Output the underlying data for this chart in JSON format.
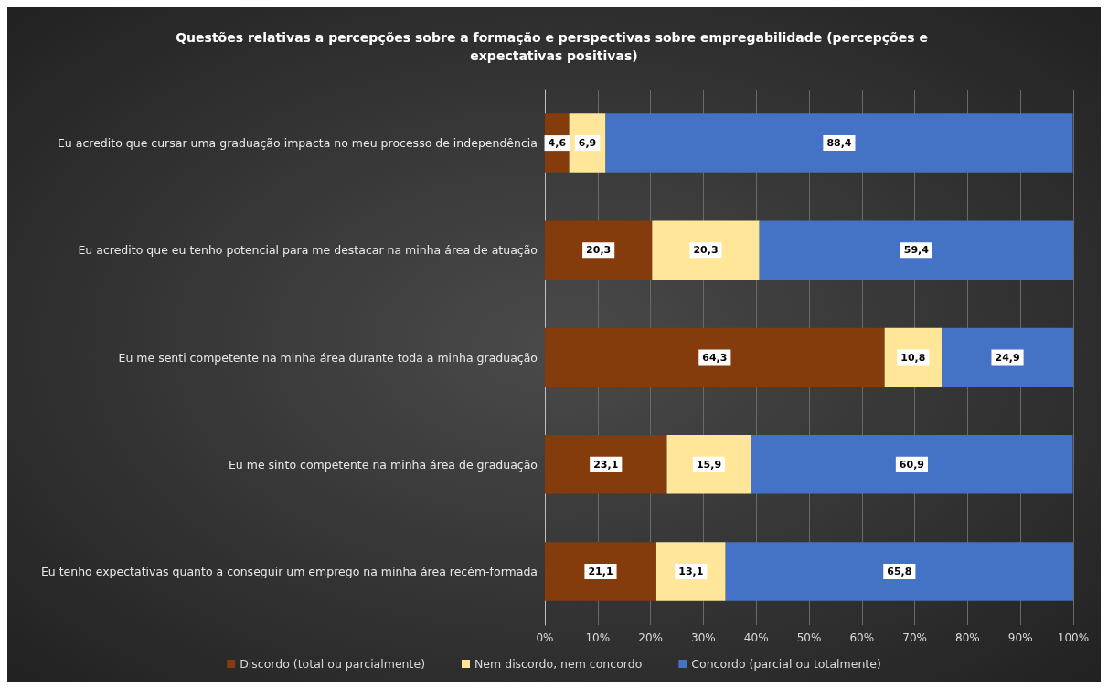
{
  "chart_data": {
    "type": "bar",
    "orientation": "horizontal",
    "stacked": true,
    "title": "Questões relativas a percepções sobre a formação e perspectivas sobre empregabilidade (percepções e expectativas positivas)",
    "categories": [
      "Eu acredito que cursar uma graduação impacta no meu processo de independência",
      "Eu acredito que eu tenho potencial para me destacar na minha área de atuação",
      "Eu me senti competente na minha área durante toda a minha graduação",
      "Eu me sinto competente na minha área de graduação",
      "Eu tenho expectativas quanto a conseguir um emprego na minha área recém-formada"
    ],
    "series": [
      {
        "name": "Discordo (total ou parcialmente)",
        "color": "#843c0c",
        "values": [
          4.6,
          20.3,
          64.3,
          23.1,
          21.1
        ],
        "value_labels": [
          "4,6",
          "20,3",
          "64,3",
          "23,1",
          "21,1"
        ]
      },
      {
        "name": "Nem discordo, nem concordo",
        "color": "#ffe699",
        "values": [
          6.9,
          20.3,
          10.8,
          15.9,
          13.1
        ],
        "value_labels": [
          "6,9",
          "20,3",
          "10,8",
          "15,9",
          "13,1"
        ]
      },
      {
        "name": "Concordo (parcial ou totalmente)",
        "color": "#4472c4",
        "values": [
          88.4,
          59.4,
          24.9,
          60.9,
          65.8
        ],
        "value_labels": [
          "88,4",
          "59,4",
          "24,9",
          "60,9",
          "65,8"
        ]
      }
    ],
    "xlim": [
      0,
      100
    ],
    "xticks": [
      {
        "value": 0,
        "label": "0%"
      },
      {
        "value": 10,
        "label": "10%"
      },
      {
        "value": 20,
        "label": "20%"
      },
      {
        "value": 30,
        "label": "30%"
      },
      {
        "value": 40,
        "label": "40%"
      },
      {
        "value": 50,
        "label": "50%"
      },
      {
        "value": 60,
        "label": "60%"
      },
      {
        "value": 70,
        "label": "70%"
      },
      {
        "value": 80,
        "label": "80%"
      },
      {
        "value": 90,
        "label": "90%"
      },
      {
        "value": 100,
        "label": "100%"
      }
    ],
    "grid": "x",
    "legend": "bottom"
  }
}
